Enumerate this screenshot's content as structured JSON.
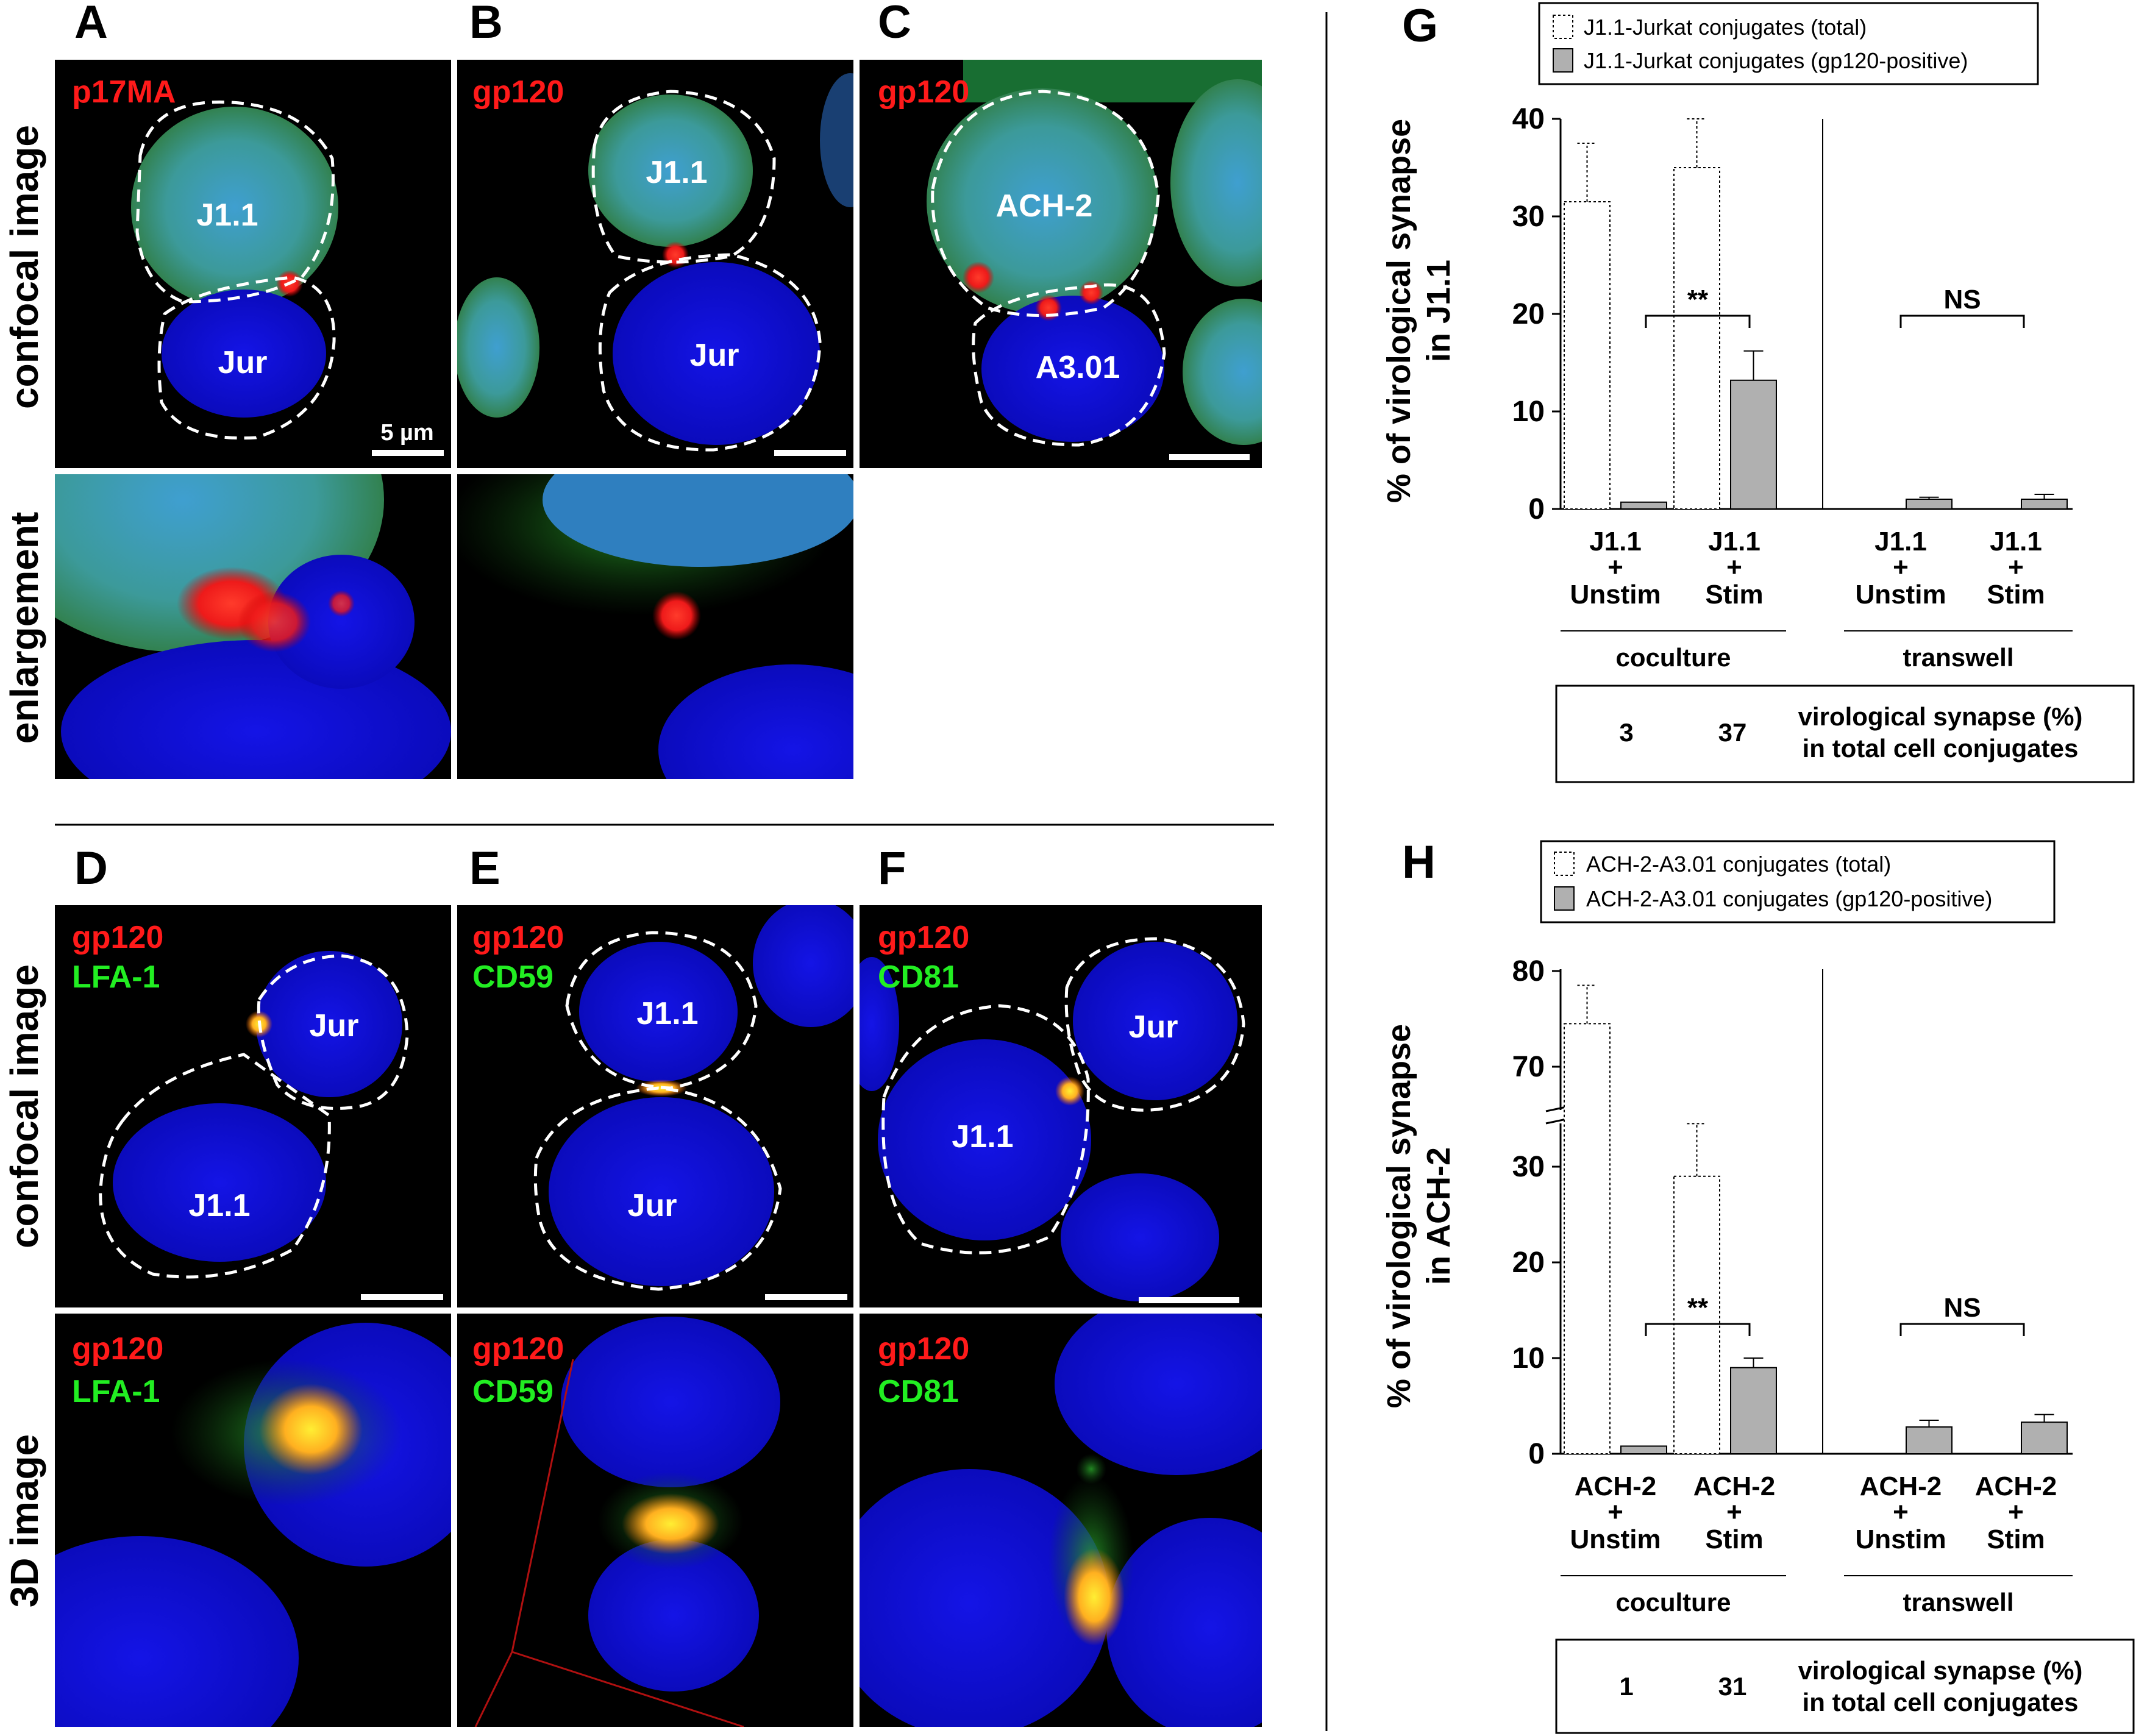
{
  "panels": {
    "A": {
      "letter": "A",
      "stain1": "p17MA",
      "cell1": "J1.1",
      "cell2": "Jur",
      "scale": "5 µm"
    },
    "B": {
      "letter": "B",
      "stain1": "gp120",
      "cell1": "J1.1",
      "cell2": "Jur"
    },
    "C": {
      "letter": "C",
      "stain1": "gp120",
      "cell1": "ACH-2",
      "cell2": "A3.01"
    },
    "D": {
      "letter": "D",
      "stain1": "gp120",
      "stain2": "LFA-1",
      "cell1": "Jur",
      "cell2": "J1.1",
      "stain1_3d": "gp120",
      "stain2_3d": "LFA-1"
    },
    "E": {
      "letter": "E",
      "stain1": "gp120",
      "stain2": "CD59",
      "cell1": "J1.1",
      "cell2": "Jur",
      "stain1_3d": "gp120",
      "stain2_3d": "CD59"
    },
    "F": {
      "letter": "F",
      "stain1": "gp120",
      "stain2": "CD81",
      "cell1": "Jur",
      "cell2": "J1.1",
      "stain1_3d": "gp120",
      "stain2_3d": "CD81"
    }
  },
  "row_labels": {
    "confocal_top": "confocal image",
    "enlargement": "enlargement",
    "confocal_bottom": "confocal image",
    "image_3d": "3D image"
  },
  "chart_data": [
    {
      "type": "bar",
      "panel": "G",
      "ylabel_line1": "% of virological synapse",
      "ylabel_line2": "in J1.1",
      "ylim": [
        0,
        40
      ],
      "yticks": [
        "0",
        "10",
        "20",
        "30",
        "40"
      ],
      "categories": [
        {
          "l1": "J1.1",
          "l2": "+",
          "l3": "Unstim"
        },
        {
          "l1": "J1.1",
          "l2": "+",
          "l3": "Stim"
        },
        {
          "l1": "J1.1",
          "l2": "+",
          "l3": "Unstim"
        },
        {
          "l1": "J1.1",
          "l2": "+",
          "l3": "Stim"
        }
      ],
      "groups": [
        "coculture",
        "transwell"
      ],
      "series": [
        {
          "name": "J1.1-Jurkat conjugates (total)",
          "values": [
            31.5,
            35,
            null,
            null
          ],
          "errors": [
            6,
            5,
            null,
            null
          ],
          "color": "#ffffff",
          "dotted": true
        },
        {
          "name": "J1.1-Jurkat conjugates (gp120-positive)",
          "values": [
            0.7,
            13.2,
            1,
            1
          ],
          "errors": [
            0,
            3,
            0.2,
            0.5
          ],
          "color": "#b0b0b0",
          "dotted": false
        }
      ],
      "significance": [
        "**",
        "NS"
      ],
      "box": {
        "v1": "3",
        "v2": "37",
        "line1": "virological synapse (%)",
        "line2": "in total cell conjugates"
      }
    },
    {
      "type": "bar",
      "panel": "H",
      "ylabel_line1": "% of virological synapse",
      "ylabel_line2": "in ACH-2",
      "y_axis_break": [
        35,
        65
      ],
      "yticks": [
        "0",
        "10",
        "20",
        "30",
        "70",
        "80"
      ],
      "categories": [
        {
          "l1": "ACH-2",
          "l2": "+",
          "l3": "Unstim"
        },
        {
          "l1": "ACH-2",
          "l2": "+",
          "l3": "Stim"
        },
        {
          "l1": "ACH-2",
          "l2": "+",
          "l3": "Unstim"
        },
        {
          "l1": "ACH-2",
          "l2": "+",
          "l3": "Stim"
        }
      ],
      "groups": [
        "coculture",
        "transwell"
      ],
      "series": [
        {
          "name": "ACH-2-A3.01 conjugates (total)",
          "values": [
            74.5,
            29,
            null,
            null
          ],
          "errors": [
            4,
            5.5,
            null,
            null
          ],
          "color": "#ffffff",
          "dotted": true
        },
        {
          "name": "ACH-2-A3.01 conjugates (gp120-positive)",
          "values": [
            0.8,
            9,
            2.8,
            3.3
          ],
          "errors": [
            0,
            1,
            0.7,
            0.8
          ],
          "color": "#b0b0b0",
          "dotted": false
        }
      ],
      "significance": [
        "**",
        "NS"
      ],
      "box": {
        "v1": "1",
        "v2": "31",
        "line1": "virological synapse (%)",
        "line2": "in total cell conjugates"
      }
    }
  ]
}
